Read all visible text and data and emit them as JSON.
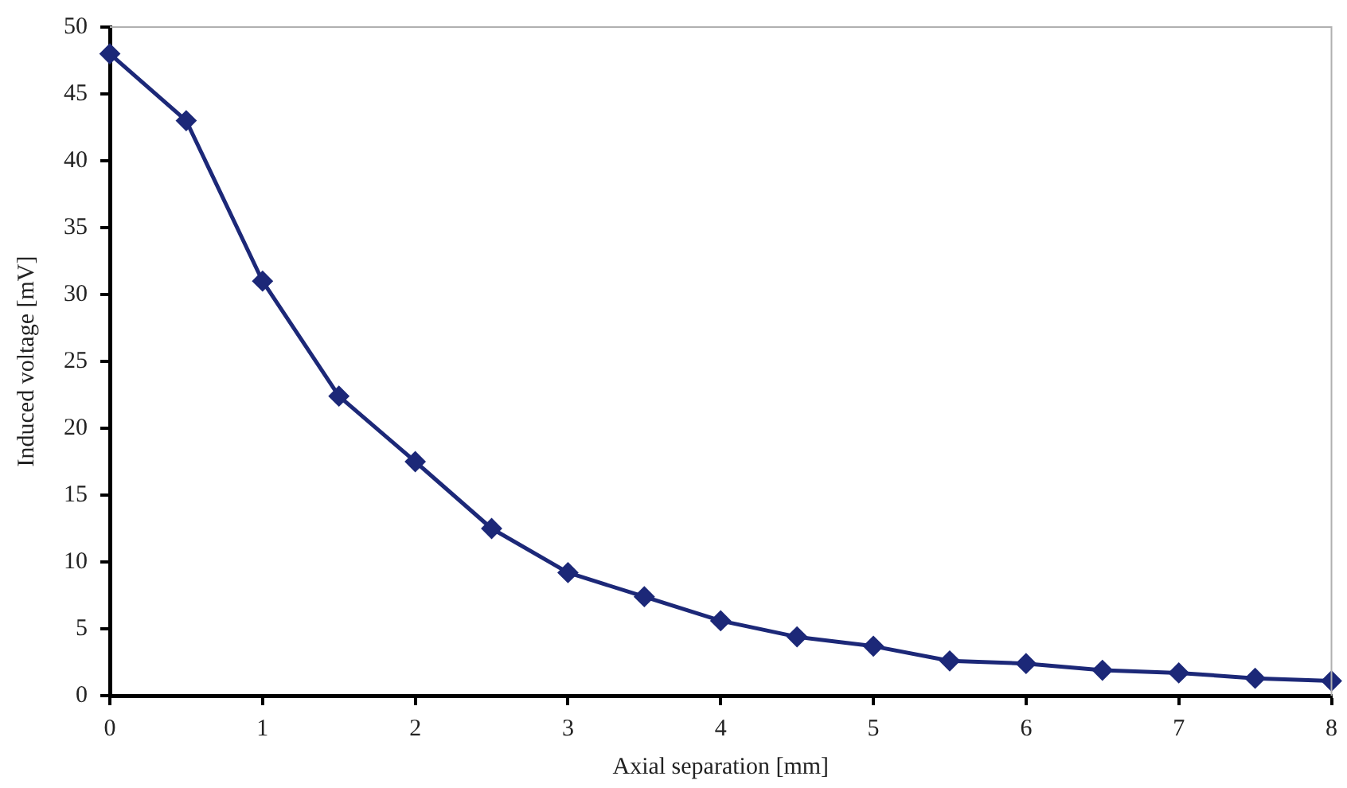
{
  "chart_data": {
    "type": "line",
    "xlabel": "Axial separation [mm]",
    "ylabel": "Induced voltage [mV]",
    "x": [
      0,
      0.5,
      1,
      1.5,
      2,
      2.5,
      3,
      3.5,
      4,
      4.5,
      5,
      5.5,
      6,
      6.5,
      7,
      7.5,
      8
    ],
    "series": [
      {
        "color": "#1c2878",
        "values": [
          48,
          43,
          31,
          22.4,
          17.5,
          12.5,
          9.2,
          7.4,
          5.6,
          4.4,
          3.7,
          2.6,
          2.4,
          1.9,
          1.7,
          1.3,
          1.1
        ]
      }
    ],
    "xlim": [
      0,
      8
    ],
    "xticks": [
      0,
      1,
      2,
      3,
      4,
      5,
      6,
      7,
      8
    ],
    "ylim": [
      0,
      50
    ],
    "yticks": [
      0,
      5,
      10,
      15,
      20,
      25,
      30,
      35,
      40,
      45,
      50
    ],
    "grid": false,
    "legend": false,
    "marker": "diamond",
    "line_style": "solid"
  }
}
